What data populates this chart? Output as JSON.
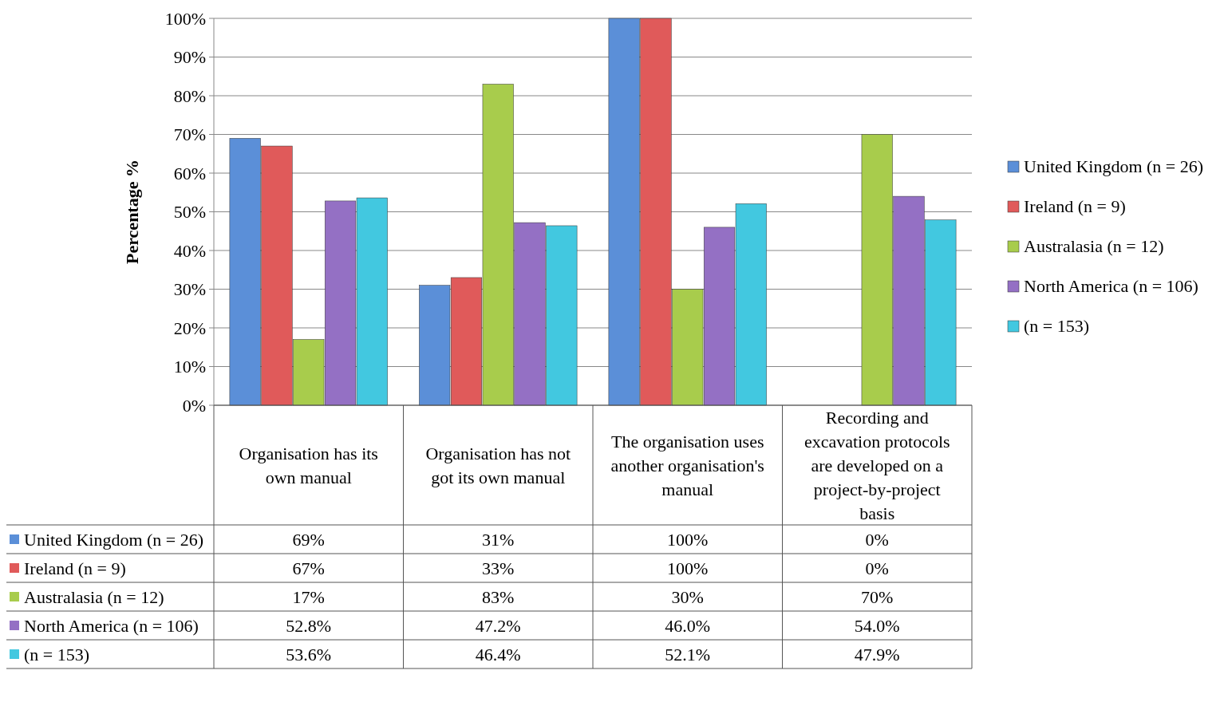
{
  "chart_data": {
    "type": "bar",
    "ylabel": "Percentage %",
    "categories": [
      "Organisation has its own manual",
      "Organisation has not got its own manual",
      "The organisation uses another organisation's manual",
      "Recording and excavation protocols are developed on a project-by-project basis"
    ],
    "series": [
      {
        "name": "United Kingdom (n = 26)",
        "color": "#5b8fd8",
        "values": [
          69,
          31,
          100,
          0
        ],
        "value_labels": [
          "69%",
          "31%",
          "100%",
          "0%"
        ]
      },
      {
        "name": "Ireland (n = 9)",
        "color": "#e05a5a",
        "values": [
          67,
          33,
          100,
          0
        ],
        "value_labels": [
          "67%",
          "33%",
          "100%",
          "0%"
        ]
      },
      {
        "name": "Australasia (n = 12)",
        "color": "#a8cc4c",
        "values": [
          17,
          83,
          30,
          70
        ],
        "value_labels": [
          "17%",
          "83%",
          "30%",
          "70%"
        ]
      },
      {
        "name": "North America (n = 106)",
        "color": "#9470c4",
        "values": [
          52.8,
          47.2,
          46.0,
          54.0
        ],
        "value_labels": [
          "52.8%",
          "47.2%",
          "46.0%",
          "54.0%"
        ]
      },
      {
        "name": "(n = 153)",
        "color": "#42c8e0",
        "values": [
          53.6,
          46.4,
          52.1,
          47.9
        ],
        "value_labels": [
          "53.6%",
          "46.4%",
          "52.1%",
          "47.9%"
        ]
      }
    ],
    "ylim": [
      0,
      100
    ],
    "yticks": [
      {
        "value": 0,
        "label": "0%"
      },
      {
        "value": 10,
        "label": "10%"
      },
      {
        "value": 20,
        "label": "20%"
      },
      {
        "value": 30,
        "label": "30%"
      },
      {
        "value": 40,
        "label": "40%"
      },
      {
        "value": 50,
        "label": "50%"
      },
      {
        "value": 60,
        "label": "60%"
      },
      {
        "value": 70,
        "label": "70%"
      },
      {
        "value": 80,
        "label": "80%"
      },
      {
        "value": 90,
        "label": "90%"
      },
      {
        "value": 100,
        "label": "100%"
      }
    ],
    "grid": "y",
    "legend": "right"
  }
}
